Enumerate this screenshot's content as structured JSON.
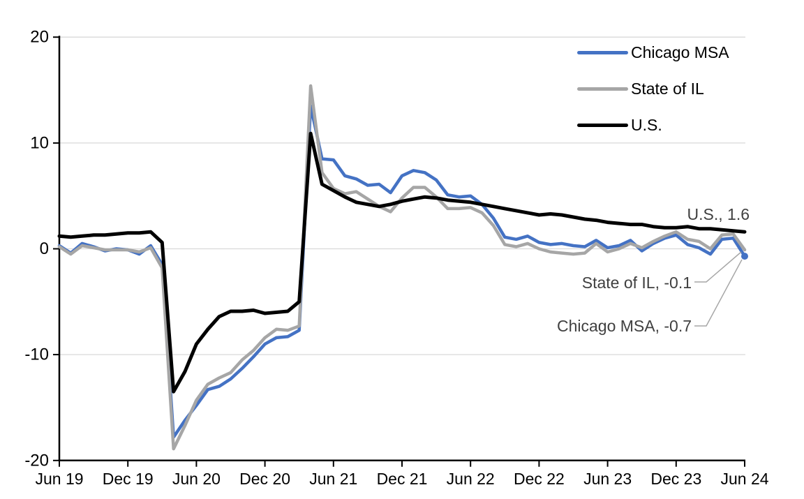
{
  "chart_data": {
    "type": "line",
    "title": "",
    "x_start": "Jun 2019",
    "x_end": "Jun 2024",
    "x_frequency": "monthly",
    "n_points": 61,
    "x_tick_labels": [
      "Jun 19",
      "Dec 19",
      "Jun 20",
      "Dec 20",
      "Jun 21",
      "Dec 21",
      "Jun 22",
      "Dec 22",
      "Jun 23",
      "Dec 23",
      "Jun 24"
    ],
    "y_tick_labels": [
      "20",
      "10",
      "0",
      "-10",
      "-20"
    ],
    "y_ticks": [
      20,
      10,
      0,
      -10,
      -20
    ],
    "ylim": [
      -20,
      20
    ],
    "grid": "horizontal",
    "gridline_color": "#D9D9D9",
    "axis_color": "#000000",
    "legend_position": "top-right-inside",
    "series": [
      {
        "name": "Chicago MSA",
        "color": "#4472C4",
        "end_marker": true,
        "values": [
          0.3,
          -0.4,
          0.5,
          0.2,
          -0.2,
          0.0,
          -0.1,
          -0.5,
          0.3,
          -1.5,
          -17.8,
          -16.2,
          -14.8,
          -13.3,
          -13.0,
          -12.3,
          -11.3,
          -10.2,
          -9.0,
          -8.4,
          -8.3,
          -7.7,
          13.5,
          8.5,
          8.4,
          6.9,
          6.6,
          6.0,
          6.1,
          5.3,
          6.9,
          7.4,
          7.2,
          6.5,
          5.1,
          4.9,
          5.0,
          4.2,
          2.9,
          1.1,
          0.9,
          1.2,
          0.6,
          0.4,
          0.5,
          0.3,
          0.2,
          0.8,
          0.1,
          0.3,
          0.8,
          -0.2,
          0.5,
          1.0,
          1.3,
          0.4,
          0.1,
          -0.5,
          0.9,
          1.0,
          -0.7
        ]
      },
      {
        "name": "State of IL",
        "color": "#A6A6A6",
        "end_marker": false,
        "values": [
          0.2,
          -0.5,
          0.3,
          0.1,
          -0.1,
          -0.1,
          -0.1,
          -0.3,
          0.1,
          -1.8,
          -18.9,
          -16.7,
          -14.3,
          -12.8,
          -12.2,
          -11.7,
          -10.5,
          -9.6,
          -8.4,
          -7.6,
          -7.7,
          -7.3,
          15.4,
          7.2,
          5.7,
          5.2,
          5.4,
          4.7,
          4.0,
          3.5,
          4.8,
          5.8,
          5.8,
          4.9,
          3.8,
          3.8,
          3.9,
          3.4,
          2.2,
          0.4,
          0.2,
          0.5,
          0.0,
          -0.3,
          -0.4,
          -0.5,
          -0.4,
          0.5,
          -0.3,
          0.0,
          0.5,
          0.1,
          0.7,
          1.2,
          1.6,
          0.9,
          0.7,
          0.0,
          1.3,
          1.4,
          -0.1
        ]
      },
      {
        "name": "U.S.",
        "color": "#000000",
        "end_marker": false,
        "values": [
          1.2,
          1.1,
          1.2,
          1.3,
          1.3,
          1.4,
          1.5,
          1.5,
          1.6,
          0.6,
          -13.5,
          -11.6,
          -9.0,
          -7.6,
          -6.4,
          -5.9,
          -5.9,
          -5.8,
          -6.1,
          -6.0,
          -5.9,
          -5.0,
          10.9,
          6.1,
          5.5,
          4.9,
          4.4,
          4.2,
          4.0,
          4.2,
          4.5,
          4.7,
          4.9,
          4.8,
          4.6,
          4.5,
          4.4,
          4.2,
          4.0,
          3.8,
          3.6,
          3.4,
          3.2,
          3.3,
          3.2,
          3.0,
          2.8,
          2.7,
          2.5,
          2.4,
          2.3,
          2.3,
          2.1,
          2.0,
          2.0,
          2.1,
          1.9,
          1.9,
          1.8,
          1.7,
          1.6
        ]
      }
    ],
    "annotations": [
      {
        "text": "U.S., 1.6",
        "series": "U.S."
      },
      {
        "text": "State of IL, -0.1",
        "series": "State of IL"
      },
      {
        "text": "Chicago MSA, -0.7",
        "series": "Chicago MSA"
      }
    ],
    "leader_line_color": "#A6A6A6"
  },
  "legend": {
    "items": [
      {
        "label": "Chicago MSA"
      },
      {
        "label": "State of IL"
      },
      {
        "label": "U.S."
      }
    ]
  }
}
